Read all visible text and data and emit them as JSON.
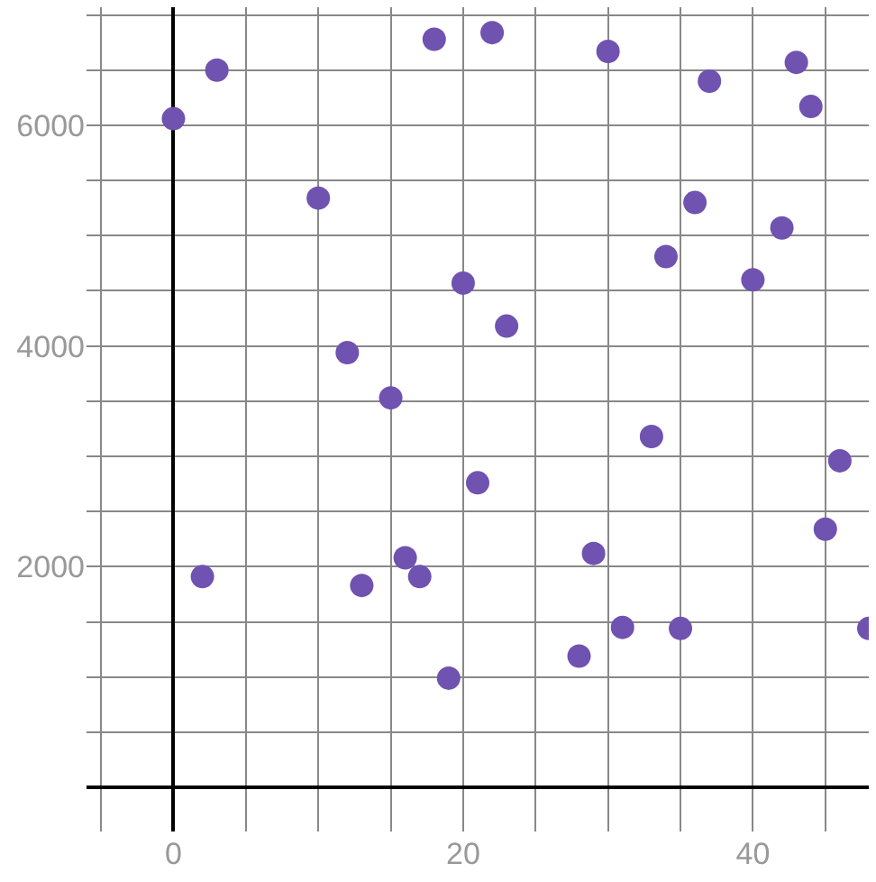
{
  "chart_data": {
    "type": "scatter",
    "marker": "circle",
    "grid": true,
    "x": [
      0,
      3,
      2,
      10,
      12,
      13,
      15,
      16,
      17,
      18,
      19,
      20,
      21,
      22,
      23,
      28,
      29,
      30,
      31,
      33,
      34,
      35,
      36,
      37,
      40,
      42,
      43,
      44,
      45,
      46,
      48
    ],
    "series": [
      {
        "color": "#7052b0",
        "values": [
          6060,
          6500,
          1910,
          5340,
          3940,
          1830,
          3530,
          2080,
          1910,
          6780,
          990,
          4570,
          2760,
          6840,
          4180,
          1190,
          2120,
          6670,
          1450,
          3180,
          4810,
          1440,
          5300,
          6400,
          4600,
          5070,
          6570,
          6170,
          2340,
          2960,
          1440
        ]
      }
    ],
    "xlim": [
      -6,
      48
    ],
    "ylim": [
      -400,
      7070
    ],
    "xticks": [
      {
        "value": -5,
        "label": null
      },
      {
        "value": 0,
        "label": "0"
      },
      {
        "value": 5,
        "label": null
      },
      {
        "value": 10,
        "label": null
      },
      {
        "value": 15,
        "label": null
      },
      20,
      {
        "value": 25,
        "label": null
      },
      {
        "value": 30,
        "label": null
      },
      {
        "value": 35,
        "label": null
      },
      40,
      {
        "value": 45,
        "label": null
      }
    ],
    "yticks": [
      {
        "value": 0,
        "label": null
      },
      {
        "value": 500,
        "label": null
      },
      {
        "value": 1000,
        "label": null
      },
      {
        "value": 1500,
        "label": null
      },
      2000,
      {
        "value": 2500,
        "label": null
      },
      {
        "value": 3000,
        "label": null
      },
      {
        "value": 3500,
        "label": null
      },
      4000,
      {
        "value": 4500,
        "label": null
      },
      {
        "value": 5000,
        "label": null
      },
      {
        "value": 5500,
        "label": null
      },
      6000,
      {
        "value": 6500,
        "label": null
      },
      {
        "value": 7000,
        "label": null
      }
    ]
  }
}
